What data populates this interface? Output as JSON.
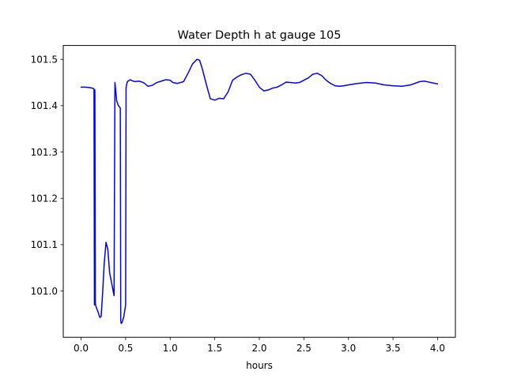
{
  "chart_data": {
    "type": "line",
    "title": "Water Depth h at gauge 105",
    "xlabel": "hours",
    "ylabel": "",
    "xlim": [
      -0.2,
      4.2
    ],
    "ylim": [
      100.9,
      101.53
    ],
    "grid": false,
    "xticks": [
      0.0,
      0.5,
      1.0,
      1.5,
      2.0,
      2.5,
      3.0,
      3.5,
      4.0
    ],
    "xtick_labels": [
      "0.0",
      "0.5",
      "1.0",
      "1.5",
      "2.0",
      "2.5",
      "3.0",
      "3.5",
      "4.0"
    ],
    "yticks": [
      101.0,
      101.1,
      101.2,
      101.3,
      101.4,
      101.5
    ],
    "ytick_labels": [
      "101.0",
      "101.1",
      "101.2",
      "101.3",
      "101.4",
      "101.5"
    ],
    "series": [
      {
        "color": "#0000ff",
        "x": [
          0.0,
          0.05,
          0.1,
          0.14,
          0.145,
          0.15,
          0.152,
          0.155,
          0.16,
          0.165,
          0.17,
          0.19,
          0.21,
          0.225,
          0.24,
          0.26,
          0.28,
          0.3,
          0.32,
          0.34,
          0.37,
          0.38,
          0.385,
          0.39,
          0.4,
          0.42,
          0.44,
          0.445,
          0.45,
          0.46,
          0.48,
          0.5,
          0.505,
          0.51,
          0.52,
          0.55,
          0.6,
          0.65,
          0.7,
          0.75,
          0.8,
          0.85,
          0.9,
          0.95,
          1.0,
          1.03,
          1.08,
          1.15,
          1.2,
          1.25,
          1.3,
          1.33,
          1.36,
          1.4,
          1.45,
          1.5,
          1.55,
          1.6,
          1.65,
          1.7,
          1.75,
          1.8,
          1.85,
          1.9,
          1.95,
          2.0,
          2.05,
          2.1,
          2.15,
          2.2,
          2.25,
          2.3,
          2.35,
          2.4,
          2.45,
          2.5,
          2.55,
          2.6,
          2.65,
          2.7,
          2.75,
          2.8,
          2.85,
          2.9,
          2.95,
          3.0,
          3.1,
          3.2,
          3.3,
          3.4,
          3.5,
          3.6,
          3.7,
          3.8,
          3.85,
          3.9,
          3.95,
          4.0
        ],
        "y": [
          101.44,
          101.44,
          101.439,
          101.437,
          101.435,
          100.97,
          101.435,
          101.432,
          100.975,
          100.968,
          100.965,
          100.955,
          100.943,
          100.945,
          100.99,
          101.06,
          101.105,
          101.09,
          101.04,
          101.02,
          100.99,
          101.45,
          101.44,
          101.43,
          101.41,
          101.4,
          101.395,
          100.935,
          100.93,
          100.932,
          100.945,
          100.97,
          101.438,
          101.445,
          101.452,
          101.456,
          101.452,
          101.453,
          101.45,
          101.442,
          101.444,
          101.45,
          101.453,
          101.456,
          101.455,
          101.45,
          101.448,
          101.452,
          101.47,
          101.49,
          101.5,
          101.498,
          101.48,
          101.45,
          101.415,
          101.412,
          101.416,
          101.415,
          101.43,
          101.455,
          101.462,
          101.467,
          101.47,
          101.468,
          101.455,
          101.44,
          101.432,
          101.434,
          101.438,
          101.44,
          101.445,
          101.451,
          101.45,
          101.449,
          101.45,
          101.455,
          101.46,
          101.468,
          101.47,
          101.465,
          101.455,
          101.448,
          101.443,
          101.442,
          101.443,
          101.445,
          101.448,
          101.45,
          101.449,
          101.445,
          101.443,
          101.442,
          101.445,
          101.452,
          101.453,
          101.451,
          101.449,
          101.447
        ]
      }
    ]
  }
}
